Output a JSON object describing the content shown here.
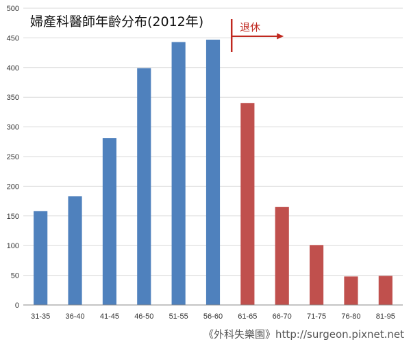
{
  "chart_data": {
    "type": "bar",
    "title": "婦產科醫師年齡分布(2012年)",
    "xlabel": "",
    "ylabel": "",
    "categories": [
      "31-35",
      "36-40",
      "41-45",
      "46-50",
      "51-55",
      "56-60",
      "61-65",
      "66-70",
      "71-75",
      "76-80",
      "81-95"
    ],
    "values": [
      158,
      183,
      281,
      399,
      443,
      447,
      340,
      165,
      101,
      48,
      49
    ],
    "ylim": [
      0,
      500
    ],
    "yticks": [
      0,
      50,
      100,
      150,
      200,
      250,
      300,
      350,
      400,
      450,
      500
    ],
    "grid": true,
    "legend": "none",
    "colors": {
      "working": "#4f81bd",
      "retired": "#c0504d",
      "annotation": "#c0281f",
      "grid": "#d9d9d9"
    },
    "retired_from_category": "61-65",
    "annotation": {
      "text": "退休",
      "near_category": "61-65"
    }
  },
  "footer": {
    "text": "《外科失樂園》http://surgeon.pixnet.net"
  }
}
